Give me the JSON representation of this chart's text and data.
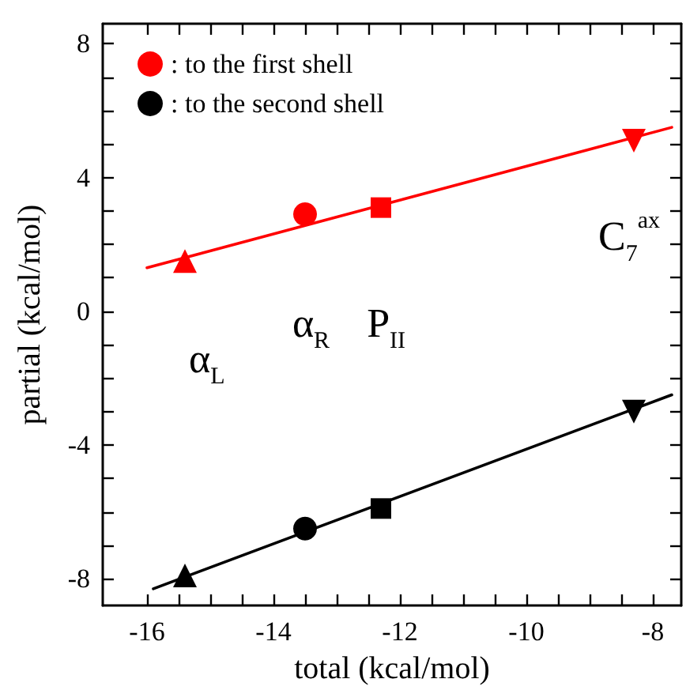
{
  "chart_data": {
    "type": "scatter",
    "xlabel": "total (kcal/mol)",
    "ylabel": "partial (kcal/mol)",
    "xlim": [
      -16.7,
      -7.55
    ],
    "ylim": [
      -8.8,
      8.6
    ],
    "xticks": [
      -16,
      {
        "value": -15.5,
        "label": null
      },
      {
        "value": -15,
        "label": null
      },
      {
        "value": -14.5,
        "label": null
      },
      -14,
      {
        "value": -13.5,
        "label": null
      },
      {
        "value": -13,
        "label": null
      },
      {
        "value": -12.5,
        "label": null
      },
      -12,
      {
        "value": -11.5,
        "label": null
      },
      {
        "value": -11,
        "label": null
      },
      {
        "value": -10.5,
        "label": null
      },
      -10,
      {
        "value": -9.5,
        "label": null
      },
      {
        "value": -9,
        "label": null
      },
      {
        "value": -8.5,
        "label": null
      },
      -8
    ],
    "yticks": [
      -8,
      {
        "value": -7,
        "label": null
      },
      {
        "value": -6,
        "label": null
      },
      {
        "value": -5,
        "label": null
      },
      -4,
      {
        "value": -3,
        "label": null
      },
      {
        "value": -2,
        "label": null
      },
      {
        "value": -1,
        "label": null
      },
      0,
      {
        "value": 1,
        "label": null
      },
      {
        "value": 2,
        "label": null
      },
      {
        "value": 3,
        "label": null
      },
      4,
      {
        "value": 5,
        "label": null
      },
      {
        "value": 6,
        "label": null
      },
      {
        "value": 7,
        "label": null
      },
      8
    ],
    "grid": false,
    "legend": "top left",
    "series": [
      {
        "name": ": to the first shell",
        "color": "#ff0000",
        "x": [
          -15.4,
          -13.5,
          -12.3,
          -8.3
        ],
        "values": [
          1.5,
          2.9,
          3.1,
          5.1
        ],
        "marker": [
          "triangle",
          "circle",
          "square",
          "triangle-down"
        ]
      },
      {
        "name": ": to the second shell",
        "color": "#000000",
        "x": [
          -15.4,
          -13.5,
          -12.3,
          -8.3
        ],
        "values": [
          -7.9,
          -6.5,
          -5.9,
          -3.0
        ],
        "marker": [
          "triangle",
          "circle",
          "square",
          "triangle-down"
        ]
      },
      {
        "type": "line",
        "color": "#ff0000",
        "x": [
          -16.0,
          -7.7
        ],
        "values": [
          1.3,
          5.5
        ],
        "marker": "none",
        "line_style": "solid"
      },
      {
        "type": "line",
        "color": "#000000",
        "x": [
          -15.9,
          -7.7
        ],
        "values": [
          -8.3,
          -2.5
        ],
        "marker": "none",
        "line_style": "solid"
      }
    ],
    "annotations": [
      "α$_{L}$",
      "α$_{R}$",
      "P$_{II}$",
      "C$_{7}$$^{ax}$"
    ]
  }
}
